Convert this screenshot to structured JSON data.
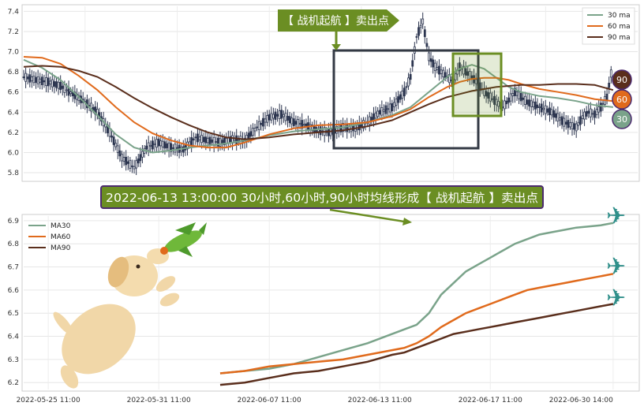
{
  "colors": {
    "ma30": "#7aa38a",
    "ma60": "#e06a1c",
    "ma90": "#5a2e1c",
    "candle": "#2d3650",
    "signal": "#6b8e23",
    "box_dark": "#333944",
    "annotation_bg": "#6b8e23",
    "annotation_border": "#4b2a6e"
  },
  "top_chart": {
    "legend": [
      "30 ma",
      "60 ma",
      "90 ma"
    ],
    "banner": "【 战机起航 】卖出点",
    "badges": [
      "90",
      "60",
      "30"
    ]
  },
  "annotation": {
    "text": "2022-06-13 13:00:00 30小时,60小时,90小时均线形成【 战机起航 】卖出点"
  },
  "bottom_chart": {
    "legend": [
      "MA30",
      "MA60",
      "MA90"
    ],
    "plane_icon": "airplane-icon",
    "mascot_icon": "dog-with-plane-icon"
  },
  "chart_data": [
    {
      "type": "line",
      "panel": "top",
      "series_kind": "candlestick with moving averages",
      "y_ticks": [
        "5.8",
        "6.0",
        "6.2",
        "6.4",
        "6.6",
        "6.8",
        "7.0",
        "7.2",
        "7.4"
      ],
      "ylim": [
        5.73,
        7.45
      ],
      "x_range": [
        0,
        100
      ],
      "grid": true,
      "legend_position": "top-right",
      "series": [
        {
          "name": "30 ma",
          "x": [
            0,
            3,
            6,
            9,
            12,
            15,
            18,
            21,
            24,
            27,
            30,
            33,
            36,
            40,
            44,
            48,
            52,
            56,
            60,
            63,
            66,
            69,
            71,
            73,
            75,
            77,
            79,
            81,
            84,
            87,
            90,
            93,
            96
          ],
          "values": [
            6.92,
            6.84,
            6.72,
            6.55,
            6.37,
            6.18,
            6.05,
            6.0,
            6.02,
            6.05,
            6.07,
            6.09,
            6.12,
            6.17,
            6.21,
            6.23,
            6.25,
            6.3,
            6.37,
            6.45,
            6.6,
            6.75,
            6.83,
            6.87,
            6.83,
            6.74,
            6.65,
            6.6,
            6.56,
            6.54,
            6.51,
            6.47,
            6.45
          ]
        },
        {
          "name": "60 ma",
          "x": [
            0,
            3,
            6,
            9,
            12,
            15,
            18,
            21,
            24,
            27,
            30,
            33,
            36,
            40,
            44,
            48,
            52,
            56,
            60,
            63,
            66,
            69,
            71,
            73,
            75,
            77,
            79,
            81,
            84,
            87,
            90,
            93,
            96
          ],
          "values": [
            6.95,
            6.94,
            6.88,
            6.76,
            6.62,
            6.45,
            6.3,
            6.19,
            6.12,
            6.07,
            6.05,
            6.05,
            6.1,
            6.18,
            6.24,
            6.27,
            6.28,
            6.3,
            6.36,
            6.43,
            6.55,
            6.65,
            6.7,
            6.73,
            6.74,
            6.74,
            6.72,
            6.68,
            6.63,
            6.6,
            6.57,
            6.53,
            6.51
          ]
        },
        {
          "name": "90 ma",
          "x": [
            0,
            3,
            6,
            9,
            12,
            15,
            18,
            21,
            24,
            27,
            30,
            33,
            36,
            40,
            44,
            48,
            52,
            56,
            60,
            63,
            66,
            69,
            71,
            73,
            75,
            77,
            79,
            81,
            84,
            87,
            90,
            93,
            96
          ],
          "values": [
            6.85,
            6.86,
            6.85,
            6.81,
            6.75,
            6.65,
            6.54,
            6.44,
            6.35,
            6.27,
            6.2,
            6.15,
            6.13,
            6.15,
            6.18,
            6.2,
            6.22,
            6.26,
            6.32,
            6.4,
            6.48,
            6.55,
            6.58,
            6.61,
            6.63,
            6.65,
            6.66,
            6.67,
            6.67,
            6.68,
            6.68,
            6.67,
            6.62
          ]
        },
        {
          "name": "price",
          "x": [
            0,
            2,
            4,
            6,
            8,
            10,
            12,
            14,
            16,
            18,
            20,
            22,
            24,
            26,
            28,
            30,
            32,
            34,
            36,
            38,
            40,
            42,
            44,
            46,
            48,
            50,
            52,
            54,
            56,
            58,
            60,
            62,
            63,
            64,
            65,
            66,
            67,
            68,
            69,
            70,
            71,
            72,
            73,
            74,
            75,
            76,
            77,
            78,
            79,
            80,
            81,
            82,
            84,
            86,
            88,
            90,
            91,
            92,
            93,
            94,
            95,
            96
          ],
          "values": [
            6.75,
            6.72,
            6.7,
            6.66,
            6.58,
            6.5,
            6.4,
            6.2,
            5.95,
            5.85,
            6.05,
            6.1,
            6.05,
            6.03,
            6.15,
            6.12,
            6.1,
            6.13,
            6.12,
            6.25,
            6.35,
            6.38,
            6.3,
            6.27,
            6.22,
            6.2,
            6.25,
            6.24,
            6.3,
            6.4,
            6.45,
            6.6,
            6.75,
            7.15,
            7.3,
            6.95,
            6.85,
            6.8,
            6.75,
            6.7,
            6.85,
            6.8,
            6.75,
            6.68,
            6.6,
            6.55,
            6.5,
            6.45,
            6.52,
            6.6,
            6.55,
            6.5,
            6.45,
            6.4,
            6.3,
            6.25,
            6.35,
            6.4,
            6.38,
            6.45,
            6.55,
            6.9
          ]
        }
      ]
    },
    {
      "type": "line",
      "panel": "bottom",
      "x_ticks": [
        "2022-05-25 11:00",
        "2022-05-31 11:00",
        "2022-06-07 11:00",
        "2022-06-13 11:00",
        "2022-06-17 11:00",
        "2022-06-30 14:00"
      ],
      "y_ticks": [
        "6.2",
        "6.3",
        "6.4",
        "6.5",
        "6.6",
        "6.7",
        "6.8",
        "6.9"
      ],
      "ylim": [
        6.17,
        6.92
      ],
      "x_range": [
        0,
        100
      ],
      "grid": true,
      "legend_position": "top-left",
      "series": [
        {
          "name": "MA30",
          "x": [
            32,
            36,
            40,
            44,
            48,
            52,
            56,
            60,
            62,
            64,
            66,
            68,
            70,
            72,
            74,
            76,
            78,
            80,
            82,
            84,
            86,
            88,
            90,
            92,
            94,
            96
          ],
          "values": [
            6.24,
            6.25,
            6.26,
            6.28,
            6.31,
            6.34,
            6.37,
            6.41,
            6.43,
            6.45,
            6.5,
            6.58,
            6.63,
            6.68,
            6.71,
            6.74,
            6.77,
            6.8,
            6.82,
            6.84,
            6.85,
            6.86,
            6.87,
            6.875,
            6.88,
            6.89
          ]
        },
        {
          "name": "MA60",
          "x": [
            32,
            36,
            40,
            44,
            48,
            52,
            56,
            60,
            62,
            64,
            66,
            68,
            70,
            72,
            74,
            76,
            78,
            80,
            82,
            84,
            86,
            88,
            90,
            92,
            94,
            96
          ],
          "values": [
            6.24,
            6.25,
            6.27,
            6.28,
            6.29,
            6.3,
            6.32,
            6.34,
            6.35,
            6.37,
            6.4,
            6.44,
            6.47,
            6.5,
            6.52,
            6.54,
            6.56,
            6.58,
            6.6,
            6.61,
            6.62,
            6.63,
            6.64,
            6.65,
            6.66,
            6.67
          ]
        },
        {
          "name": "MA90",
          "x": [
            32,
            36,
            40,
            44,
            48,
            52,
            56,
            60,
            62,
            64,
            66,
            68,
            70,
            72,
            74,
            76,
            78,
            80,
            82,
            84,
            86,
            88,
            90,
            92,
            94,
            96
          ],
          "values": [
            6.19,
            6.2,
            6.22,
            6.24,
            6.25,
            6.27,
            6.29,
            6.32,
            6.33,
            6.35,
            6.37,
            6.39,
            6.41,
            6.42,
            6.43,
            6.44,
            6.45,
            6.46,
            6.47,
            6.48,
            6.49,
            6.5,
            6.51,
            6.52,
            6.53,
            6.54
          ]
        }
      ]
    }
  ]
}
